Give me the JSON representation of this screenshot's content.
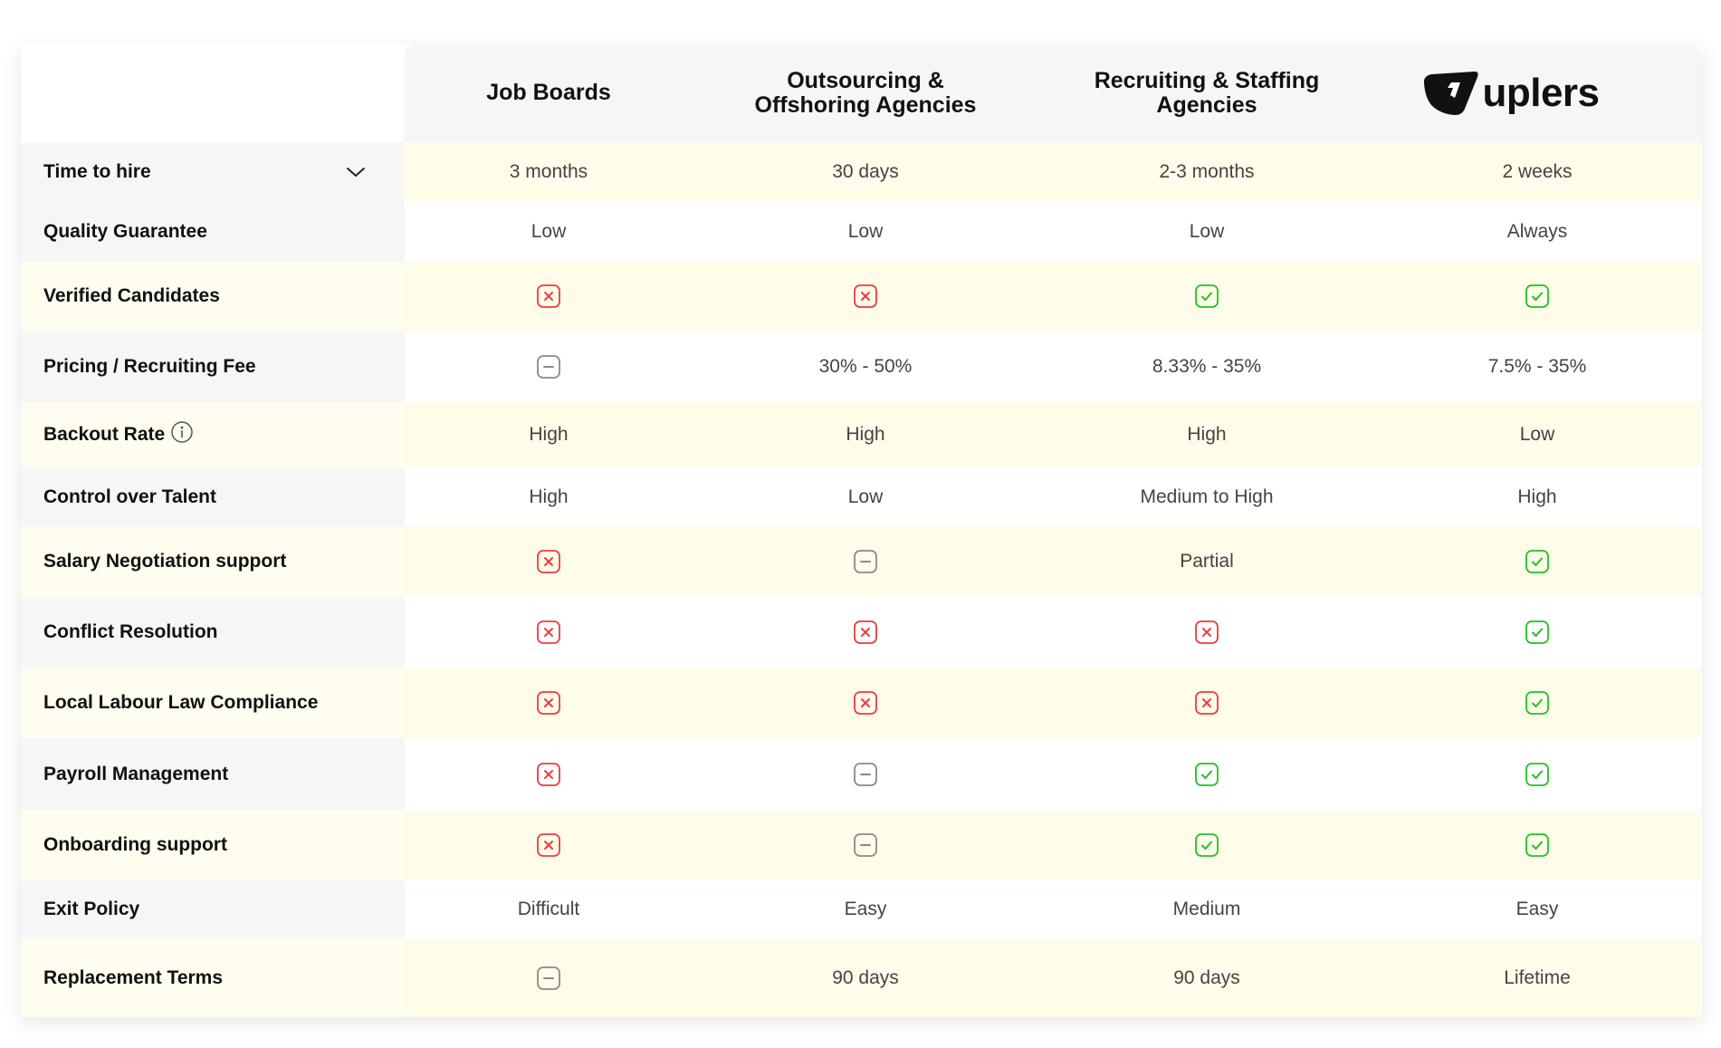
{
  "header": {
    "columns": [
      {
        "lines": [
          "Job Boards"
        ]
      },
      {
        "lines": [
          "Outsourcing &",
          "Offshoring Agencies"
        ]
      },
      {
        "lines": [
          "Recruiting & Staffing",
          "Agencies"
        ]
      }
    ],
    "brand": {
      "text": "uplers",
      "icon": "uplers-logo-icon"
    }
  },
  "colors": {
    "cross": "#ef3b3b",
    "check": "#1ec41e",
    "dash": "#8a8a8a",
    "row_highlight": "#fffcea",
    "header_bg": "#f6f6f6"
  },
  "rows": [
    {
      "label": "Time to hire",
      "has_dropdown": true,
      "cells": [
        {
          "text": "3 months"
        },
        {
          "text": "30 days"
        },
        {
          "text": "2-3 months"
        },
        {
          "text": "2 weeks"
        }
      ]
    },
    {
      "label": "Quality Guarantee",
      "cells": [
        {
          "text": "Low"
        },
        {
          "text": "Low"
        },
        {
          "text": "Low"
        },
        {
          "text": "Always"
        }
      ]
    },
    {
      "label": "Verified Candidates",
      "cells": [
        {
          "icon": "cross"
        },
        {
          "icon": "cross"
        },
        {
          "icon": "check"
        },
        {
          "icon": "check"
        }
      ]
    },
    {
      "label": "Pricing / Recruiting Fee",
      "cells": [
        {
          "icon": "dash"
        },
        {
          "text": "30% - 50%"
        },
        {
          "text": "8.33% - 35%"
        },
        {
          "text": "7.5% - 35%"
        }
      ]
    },
    {
      "label": "Backout Rate",
      "has_info": true,
      "cells": [
        {
          "text": "High"
        },
        {
          "text": "High"
        },
        {
          "text": "High"
        },
        {
          "text": "Low"
        }
      ]
    },
    {
      "label": "Control over Talent",
      "cells": [
        {
          "text": "High"
        },
        {
          "text": "Low"
        },
        {
          "text": "Medium to High"
        },
        {
          "text": "High"
        }
      ]
    },
    {
      "label": "Salary Negotiation support",
      "cells": [
        {
          "icon": "cross"
        },
        {
          "icon": "dash"
        },
        {
          "text": "Partial"
        },
        {
          "icon": "check"
        }
      ]
    },
    {
      "label": "Conflict Resolution",
      "cells": [
        {
          "icon": "cross"
        },
        {
          "icon": "cross"
        },
        {
          "icon": "cross"
        },
        {
          "icon": "check"
        }
      ]
    },
    {
      "label": "Local Labour Law Compliance",
      "cells": [
        {
          "icon": "cross"
        },
        {
          "icon": "cross"
        },
        {
          "icon": "cross"
        },
        {
          "icon": "check"
        }
      ]
    },
    {
      "label": "Payroll Management",
      "cells": [
        {
          "icon": "cross"
        },
        {
          "icon": "dash"
        },
        {
          "icon": "check"
        },
        {
          "icon": "check"
        }
      ]
    },
    {
      "label": "Onboarding support",
      "cells": [
        {
          "icon": "cross"
        },
        {
          "icon": "dash"
        },
        {
          "icon": "check"
        },
        {
          "icon": "check"
        }
      ]
    },
    {
      "label": "Exit Policy",
      "cells": [
        {
          "text": "Difficult"
        },
        {
          "text": "Easy"
        },
        {
          "text": "Medium"
        },
        {
          "text": "Easy"
        }
      ]
    },
    {
      "label": "Replacement Terms",
      "cells": [
        {
          "icon": "dash"
        },
        {
          "text": "90 days"
        },
        {
          "text": "90 days"
        },
        {
          "text": "Lifetime"
        }
      ]
    }
  ]
}
